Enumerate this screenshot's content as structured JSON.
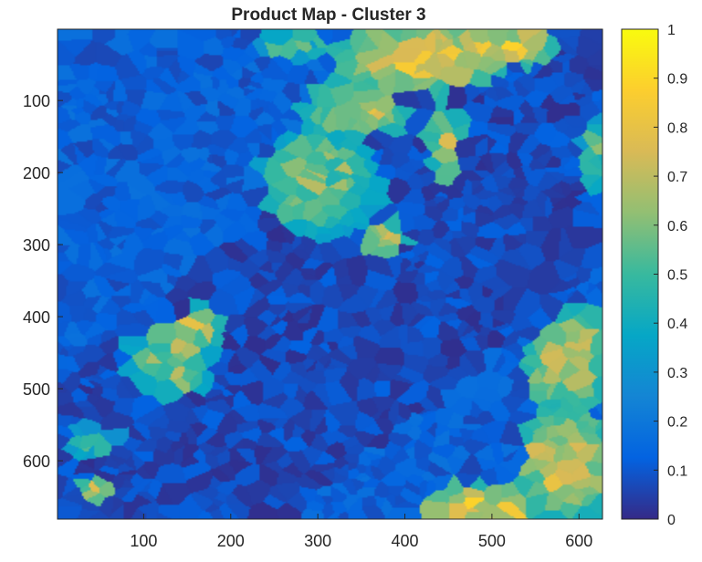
{
  "chart_data": {
    "type": "heatmap",
    "title": "Product Map - Cluster 3",
    "xlabel": "",
    "ylabel": "",
    "xlim": [
      1,
      627
    ],
    "ylim": [
      1,
      681
    ],
    "y_reversed": true,
    "xticks": [
      100,
      200,
      300,
      400,
      500,
      600
    ],
    "yticks": [
      100,
      200,
      300,
      400,
      500,
      600
    ],
    "colormap": "parula",
    "colormap_stops": [
      "#352a87",
      "#0363e1",
      "#1485d4",
      "#06a7c6",
      "#38b99e",
      "#92bf73",
      "#d9ba56",
      "#fcce2e",
      "#f9fb0e"
    ],
    "clim": [
      0,
      1
    ],
    "colorbar": {
      "ticks": [
        "0",
        "0.1",
        "0.2",
        "0.3",
        "0.4",
        "0.5",
        "0.6",
        "0.7",
        "0.8",
        "0.9",
        "1"
      ],
      "location": "right"
    },
    "background_level": 0.12,
    "regions": [
      {
        "x": 420,
        "y": 40,
        "rx": 90,
        "ry": 45,
        "value": 0.8
      },
      {
        "x": 510,
        "y": 25,
        "rx": 60,
        "ry": 25,
        "value": 0.78
      },
      {
        "x": 340,
        "y": 110,
        "rx": 55,
        "ry": 35,
        "value": 0.72
      },
      {
        "x": 300,
        "y": 210,
        "rx": 65,
        "ry": 70,
        "value": 0.6
      },
      {
        "x": 380,
        "y": 290,
        "rx": 22,
        "ry": 16,
        "value": 0.75
      },
      {
        "x": 450,
        "y": 170,
        "rx": 20,
        "ry": 45,
        "value": 0.72
      },
      {
        "x": 130,
        "y": 460,
        "rx": 45,
        "ry": 55,
        "value": 0.6
      },
      {
        "x": 160,
        "y": 410,
        "rx": 30,
        "ry": 25,
        "value": 0.7
      },
      {
        "x": 40,
        "y": 570,
        "rx": 30,
        "ry": 25,
        "value": 0.5
      },
      {
        "x": 45,
        "y": 640,
        "rx": 22,
        "ry": 18,
        "value": 0.7
      },
      {
        "x": 585,
        "y": 460,
        "rx": 45,
        "ry": 65,
        "value": 0.72
      },
      {
        "x": 585,
        "y": 600,
        "rx": 50,
        "ry": 70,
        "value": 0.75
      },
      {
        "x": 490,
        "y": 660,
        "rx": 60,
        "ry": 25,
        "value": 0.8
      },
      {
        "x": 615,
        "y": 170,
        "rx": 15,
        "ry": 50,
        "value": 0.55
      },
      {
        "x": 270,
        "y": 20,
        "rx": 40,
        "ry": 18,
        "value": 0.5
      }
    ],
    "low_region": {
      "description": "diagonal band",
      "level": 0.05
    }
  }
}
